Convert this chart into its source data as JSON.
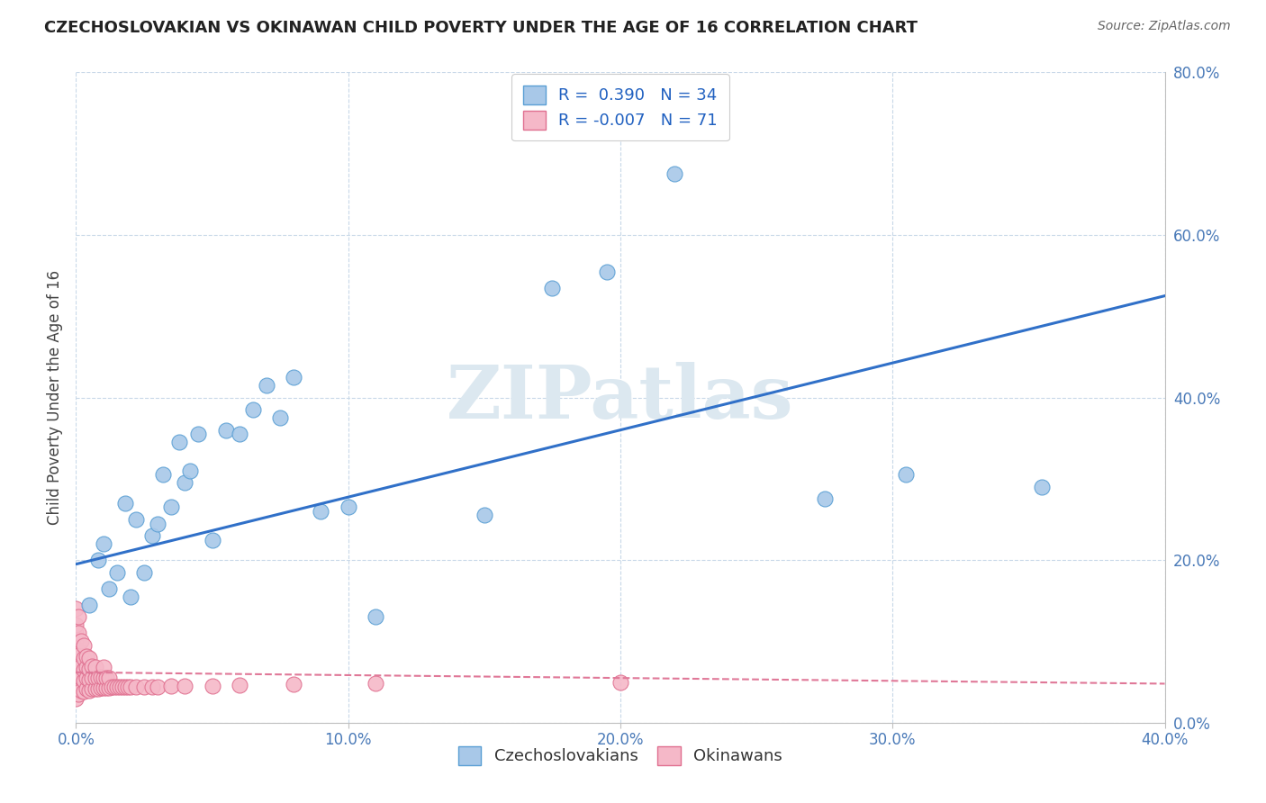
{
  "title": "CZECHOSLOVAKIAN VS OKINAWAN CHILD POVERTY UNDER THE AGE OF 16 CORRELATION CHART",
  "source": "Source: ZipAtlas.com",
  "xlim": [
    0.0,
    0.4
  ],
  "ylim": [
    0.0,
    0.8
  ],
  "x_tick_vals": [
    0.0,
    0.1,
    0.2,
    0.3,
    0.4
  ],
  "y_tick_vals": [
    0.0,
    0.2,
    0.4,
    0.6,
    0.8
  ],
  "czech_color": "#a8c8e8",
  "czech_edge_color": "#5a9fd4",
  "okinawan_color": "#f5b8c8",
  "okinawan_edge_color": "#e07090",
  "trend_czech_color": "#3070c8",
  "trend_okinawan_color": "#e07898",
  "legend_label_czech": "R =  0.390   N = 34",
  "legend_label_okinawan": "R = -0.007   N = 71",
  "watermark_text": "ZIPatlas",
  "ylabel": "Child Poverty Under the Age of 16",
  "background_color": "#ffffff",
  "grid_color": "#c8d8e8",
  "axis_color": "#c0c0c0",
  "tick_color": "#4a7ab8",
  "title_color": "#222222",
  "source_color": "#666666",
  "legend_text_color": "#2060c0",
  "watermark_color": "#dce8f0",
  "czech_x": [
    0.005,
    0.008,
    0.01,
    0.012,
    0.015,
    0.018,
    0.02,
    0.022,
    0.025,
    0.028,
    0.03,
    0.032,
    0.035,
    0.038,
    0.04,
    0.042,
    0.045,
    0.05,
    0.055,
    0.06,
    0.065,
    0.07,
    0.075,
    0.08,
    0.09,
    0.1,
    0.11,
    0.15,
    0.175,
    0.195,
    0.22,
    0.275,
    0.305,
    0.355
  ],
  "czech_y": [
    0.145,
    0.2,
    0.22,
    0.165,
    0.185,
    0.27,
    0.155,
    0.25,
    0.185,
    0.23,
    0.245,
    0.305,
    0.265,
    0.345,
    0.295,
    0.31,
    0.355,
    0.225,
    0.36,
    0.355,
    0.385,
    0.415,
    0.375,
    0.425,
    0.26,
    0.265,
    0.13,
    0.255,
    0.535,
    0.555,
    0.675,
    0.275,
    0.305,
    0.29
  ],
  "okinawan_x": [
    0.0,
    0.0,
    0.0,
    0.0,
    0.0,
    0.0,
    0.0,
    0.0,
    0.0,
    0.0,
    0.001,
    0.001,
    0.001,
    0.001,
    0.001,
    0.001,
    0.001,
    0.002,
    0.002,
    0.002,
    0.002,
    0.002,
    0.003,
    0.003,
    0.003,
    0.003,
    0.003,
    0.004,
    0.004,
    0.004,
    0.004,
    0.005,
    0.005,
    0.005,
    0.005,
    0.006,
    0.006,
    0.006,
    0.007,
    0.007,
    0.007,
    0.008,
    0.008,
    0.009,
    0.009,
    0.01,
    0.01,
    0.01,
    0.011,
    0.011,
    0.012,
    0.012,
    0.013,
    0.014,
    0.015,
    0.016,
    0.017,
    0.018,
    0.019,
    0.02,
    0.022,
    0.025,
    0.028,
    0.03,
    0.035,
    0.04,
    0.05,
    0.06,
    0.08,
    0.11,
    0.2
  ],
  "okinawan_y": [
    0.03,
    0.05,
    0.06,
    0.07,
    0.08,
    0.09,
    0.1,
    0.11,
    0.12,
    0.14,
    0.035,
    0.048,
    0.06,
    0.075,
    0.09,
    0.11,
    0.13,
    0.04,
    0.055,
    0.07,
    0.085,
    0.1,
    0.038,
    0.052,
    0.065,
    0.08,
    0.095,
    0.042,
    0.055,
    0.068,
    0.082,
    0.04,
    0.053,
    0.066,
    0.08,
    0.042,
    0.055,
    0.07,
    0.042,
    0.055,
    0.068,
    0.042,
    0.055,
    0.043,
    0.056,
    0.043,
    0.055,
    0.068,
    0.043,
    0.055,
    0.043,
    0.055,
    0.044,
    0.044,
    0.044,
    0.044,
    0.044,
    0.044,
    0.044,
    0.044,
    0.044,
    0.044,
    0.044,
    0.044,
    0.045,
    0.045,
    0.045,
    0.046,
    0.047,
    0.048,
    0.05
  ],
  "trend_czech_x0": 0.0,
  "trend_czech_y0": 0.195,
  "trend_czech_x1": 0.4,
  "trend_czech_y1": 0.525,
  "trend_okinawan_x0": 0.0,
  "trend_okinawan_y0": 0.062,
  "trend_okinawan_x1": 0.4,
  "trend_okinawan_y1": 0.048
}
